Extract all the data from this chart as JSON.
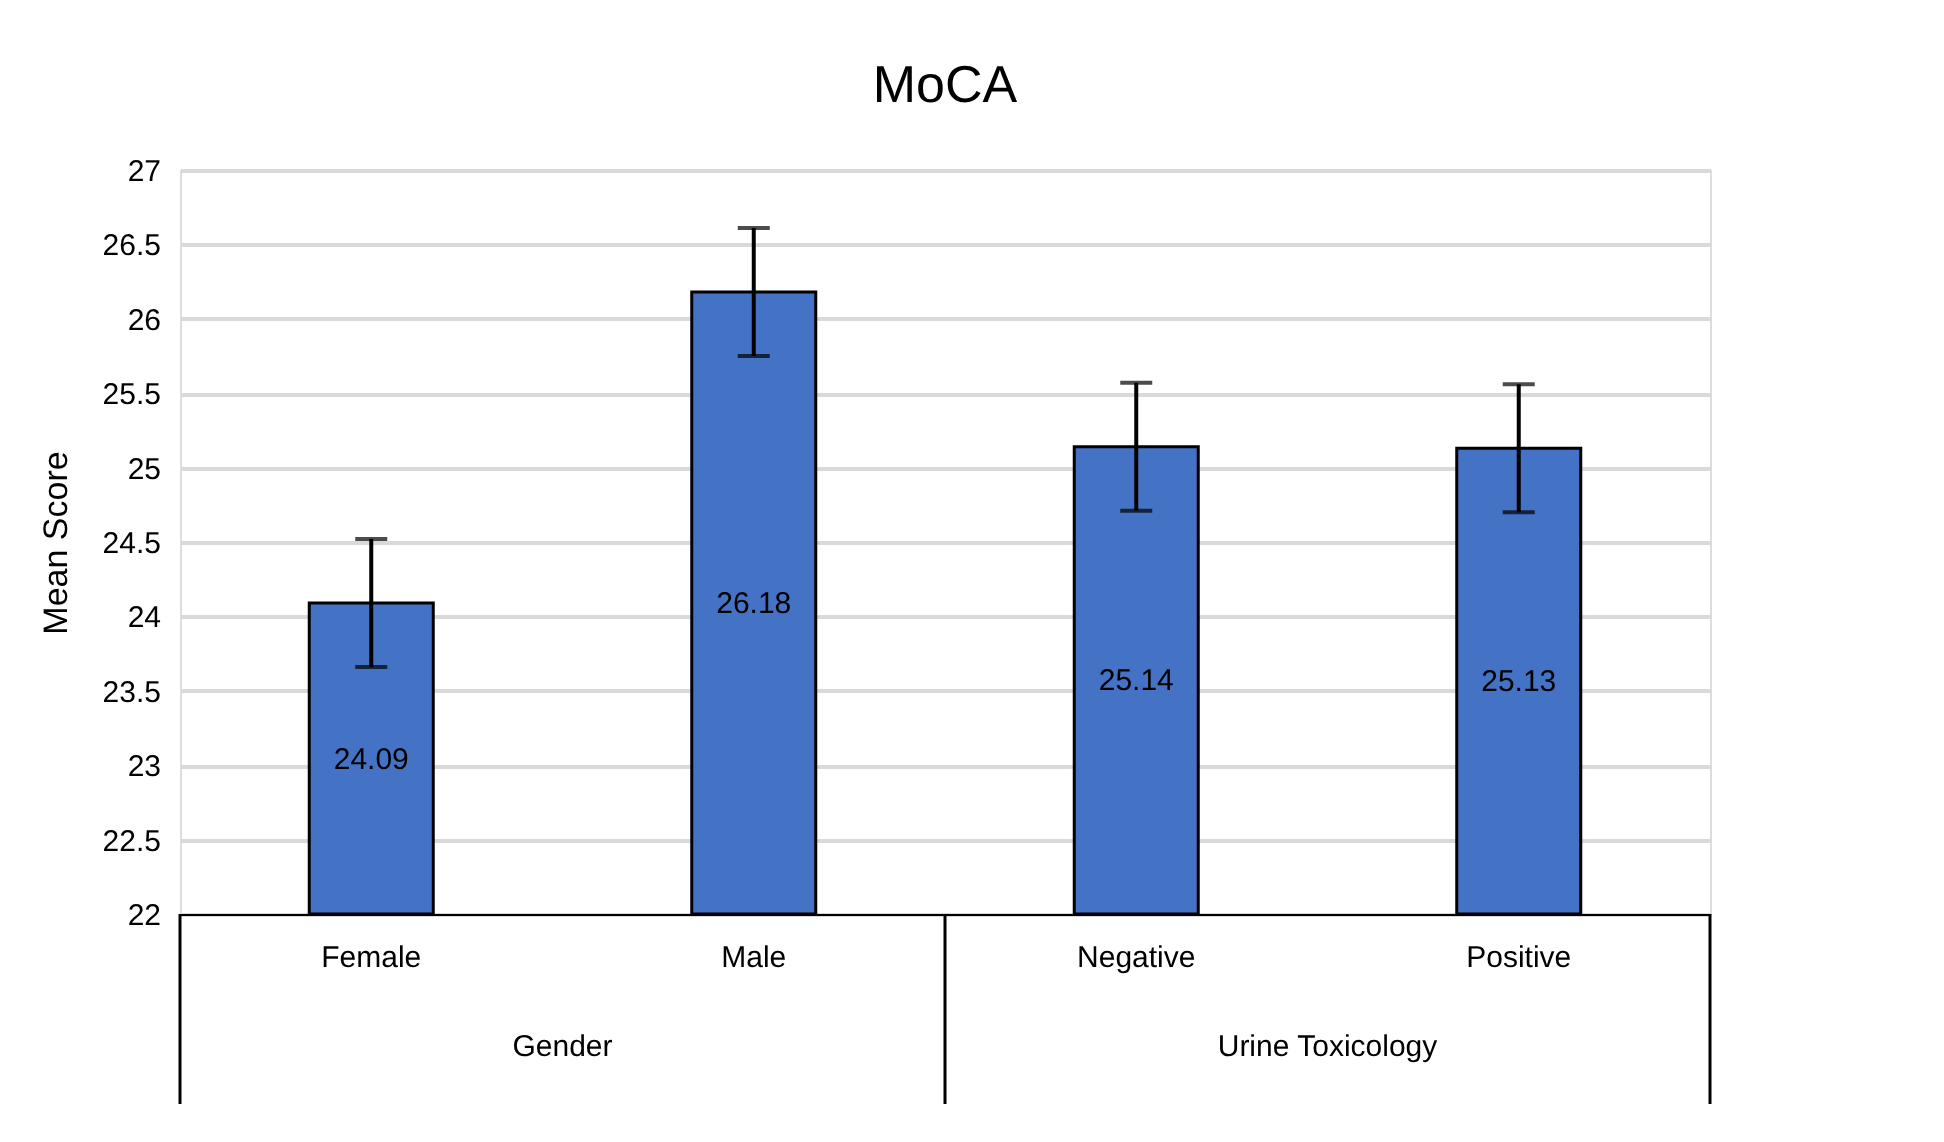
{
  "chart_data": {
    "type": "bar",
    "title": "MoCA",
    "ylabel": "Mean Score",
    "categories": [
      "Female",
      "Male",
      "Negative",
      "Positive"
    ],
    "values": [
      24.09,
      26.18,
      25.14,
      25.13
    ],
    "errors": [
      0.43,
      0.43,
      0.43,
      0.43
    ],
    "color": "#4472c4",
    "ylim": [
      22,
      27
    ],
    "yticks": [
      22,
      22.5,
      23,
      23.5,
      24,
      24.5,
      25,
      25.5,
      26,
      26.5,
      27
    ],
    "grid": "y",
    "data_labels": true,
    "annotations": [
      "Gender",
      "Urine Toxicology"
    ]
  }
}
